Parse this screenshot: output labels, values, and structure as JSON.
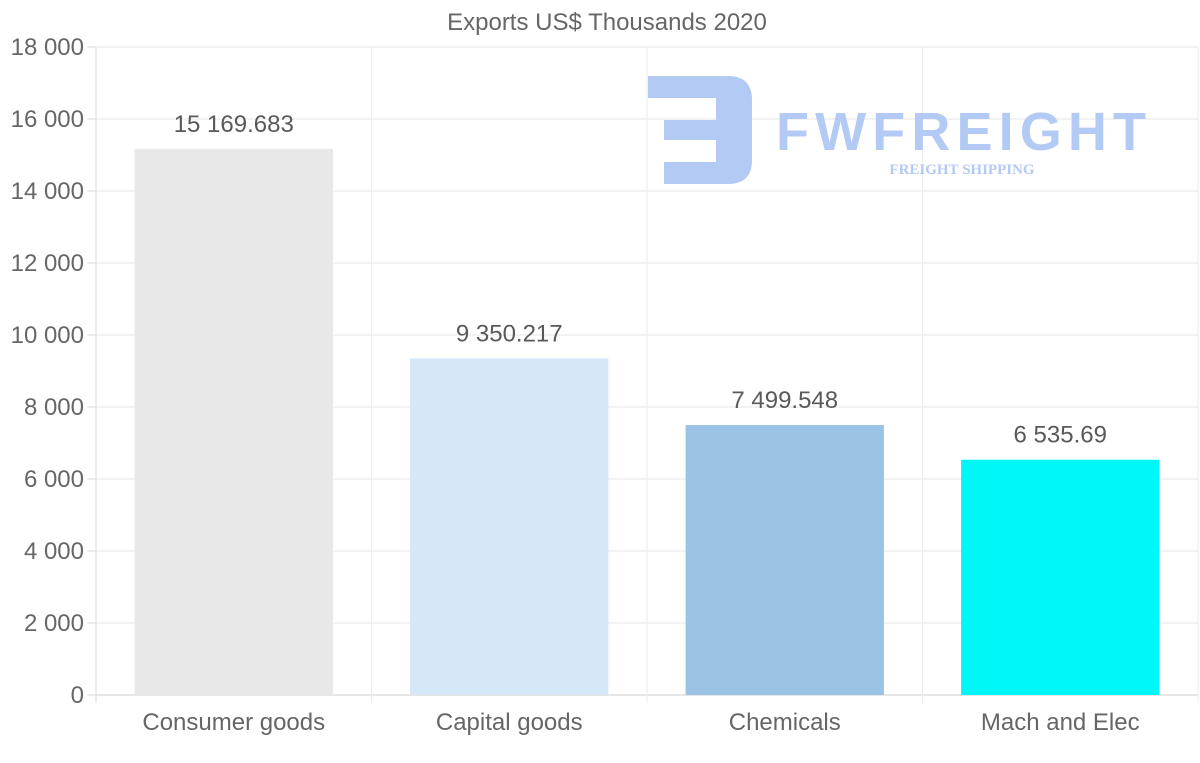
{
  "chart_data": {
    "type": "bar",
    "title": "Exports US$ Thousands 2020",
    "categories": [
      "Consumer goods",
      "Capital goods",
      "Chemicals",
      "Mach and Elec"
    ],
    "values": [
      15169.683,
      9350.217,
      7499.548,
      6535.69
    ],
    "value_labels": [
      "15 169.683",
      "9 350.217",
      "7 499.548",
      "6 535.69"
    ],
    "colors": [
      "#e8e8e8",
      "#d6e7f8",
      "#9bc3e6",
      "#00f7f7"
    ],
    "ylim": [
      0,
      18000
    ],
    "yticks": [
      0,
      2000,
      4000,
      6000,
      8000,
      10000,
      12000,
      14000,
      16000,
      18000
    ],
    "ytick_labels": [
      "0",
      "2 000",
      "4 000",
      "6 000",
      "8 000",
      "10 000",
      "12 000",
      "14 000",
      "16 000",
      "18 000"
    ],
    "xlabel": "",
    "ylabel": "",
    "grid": true
  },
  "watermark": {
    "brand": "FWFREIGHT",
    "tagline": "FREIGHT SHIPPING",
    "color": "#b3caf5"
  }
}
